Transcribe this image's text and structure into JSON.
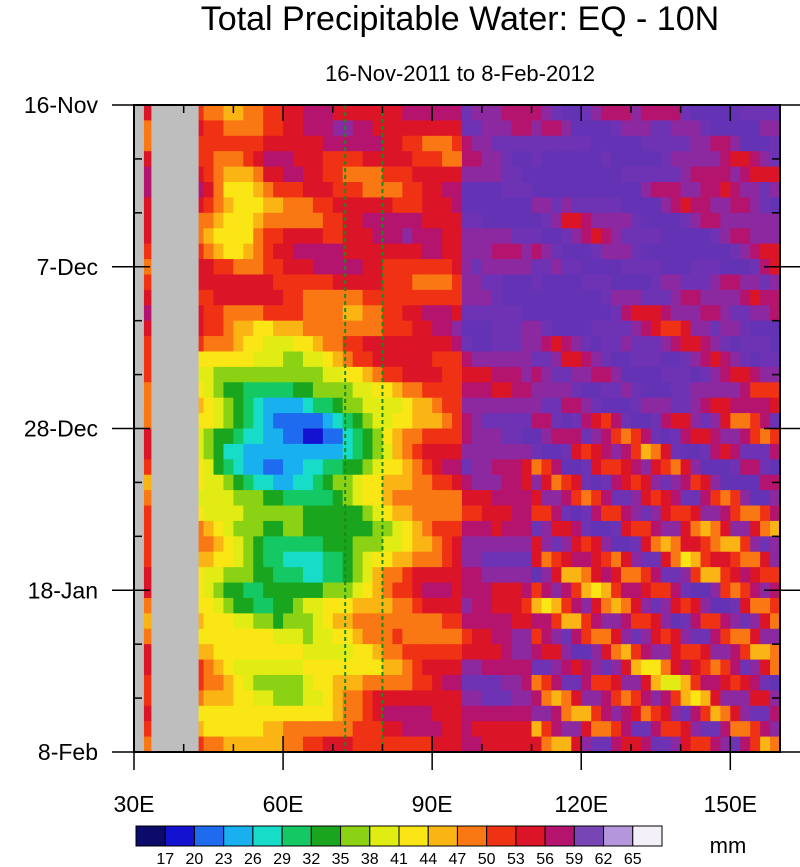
{
  "chart_data": {
    "type": "heatmap",
    "title": "Total Precipitable Water: EQ - 10N",
    "subtitle": "16-Nov-2011 to 8-Feb-2012",
    "x_axis": {
      "range": [
        30,
        160
      ],
      "ticks": [
        30,
        60,
        90,
        120,
        150
      ],
      "tick_labels": [
        "30E",
        "60E",
        "90E",
        "120E",
        "150E"
      ]
    },
    "y_axis": {
      "range": [
        "16-Nov-2011",
        "8-Feb-2012"
      ],
      "ticks": [
        0,
        21,
        42,
        63,
        84
      ],
      "tick_labels": [
        "16-Nov",
        "7-Dec",
        "28-Dec",
        "18-Jan",
        "8-Feb"
      ]
    },
    "colorbar": {
      "units": "mm",
      "levels": [
        17,
        20,
        23,
        26,
        29,
        32,
        35,
        38,
        41,
        44,
        47,
        50,
        53,
        56,
        59,
        62,
        65
      ]
    },
    "missing_land": {
      "lon_range": [
        33.5,
        43
      ],
      "color": "#bebebe"
    },
    "reference_lines_lon": [
      72.5,
      80
    ]
  }
}
